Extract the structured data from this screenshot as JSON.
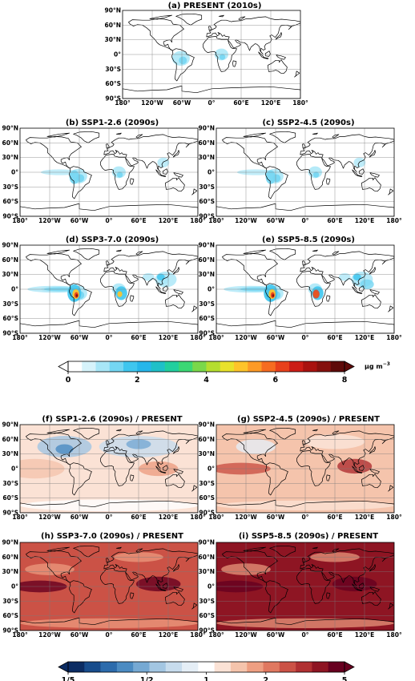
{
  "panels": [
    {
      "id": "a",
      "title": "(a) PRESENT (2010s)",
      "type": "abs",
      "level": 0
    },
    {
      "id": "b",
      "title": "(b) SSP1-2.6 (2090s)",
      "type": "abs",
      "level": 1
    },
    {
      "id": "c",
      "title": "(c) SSP2-4.5 (2090s)",
      "type": "abs",
      "level": 1
    },
    {
      "id": "d",
      "title": "(d) SSP3-7.0 (2090s)",
      "type": "abs",
      "level": 2
    },
    {
      "id": "e",
      "title": "(e) SSP5-8.5 (2090s)",
      "type": "abs",
      "level": 2.3
    },
    {
      "id": "f",
      "title": "(f) SSP1-2.6 (2090s) / PRESENT",
      "type": "ratio",
      "level": 0
    },
    {
      "id": "g",
      "title": "(g) SSP2-4.5 (2090s) / PRESENT",
      "type": "ratio",
      "level": 1
    },
    {
      "id": "h",
      "title": "(h) SSP3-7.0 (2090s) / PRESENT",
      "type": "ratio",
      "level": 2
    },
    {
      "id": "i",
      "title": "(i) SSP5-8.5 (2090s) / PRESENT",
      "type": "ratio",
      "level": 3
    }
  ],
  "lat_ticks": [
    "90°N",
    "60°N",
    "30°N",
    "0°",
    "30°S",
    "60°S",
    "90°S"
  ],
  "lon_ticks": [
    "180°",
    "120°W",
    "60°W",
    "0°",
    "60°E",
    "120°E",
    "180°"
  ],
  "colorbar_abs": {
    "ticks": [
      "0",
      "2",
      "4",
      "6",
      "8"
    ],
    "unit": "μg m",
    "unit_exp": "−3",
    "colors": [
      "#ffffff",
      "#d6f3fb",
      "#a8e6f7",
      "#74d6f2",
      "#3fc6ee",
      "#26b6ea",
      "#1fc0c8",
      "#22cf9e",
      "#3bd874",
      "#7ad84a",
      "#b5de2e",
      "#e8e22b",
      "#fec42a",
      "#fd9a26",
      "#f66c20",
      "#e8401b",
      "#cc1d16",
      "#a9120f",
      "#85100d",
      "#5e0a09"
    ]
  },
  "colorbar_ratio": {
    "ticks": [
      "1/5",
      "1/2",
      "1",
      "2",
      "5"
    ],
    "colors": [
      "#0b2c63",
      "#174c8c",
      "#2c6bac",
      "#4b8bc2",
      "#76a9d3",
      "#a3c6e2",
      "#c7dced",
      "#e5eef6",
      "#ffffff",
      "#fbe2d5",
      "#f5c4ac",
      "#ee9f82",
      "#e07860",
      "#cb5246",
      "#b03032",
      "#8e1523",
      "#67001f"
    ]
  }
}
